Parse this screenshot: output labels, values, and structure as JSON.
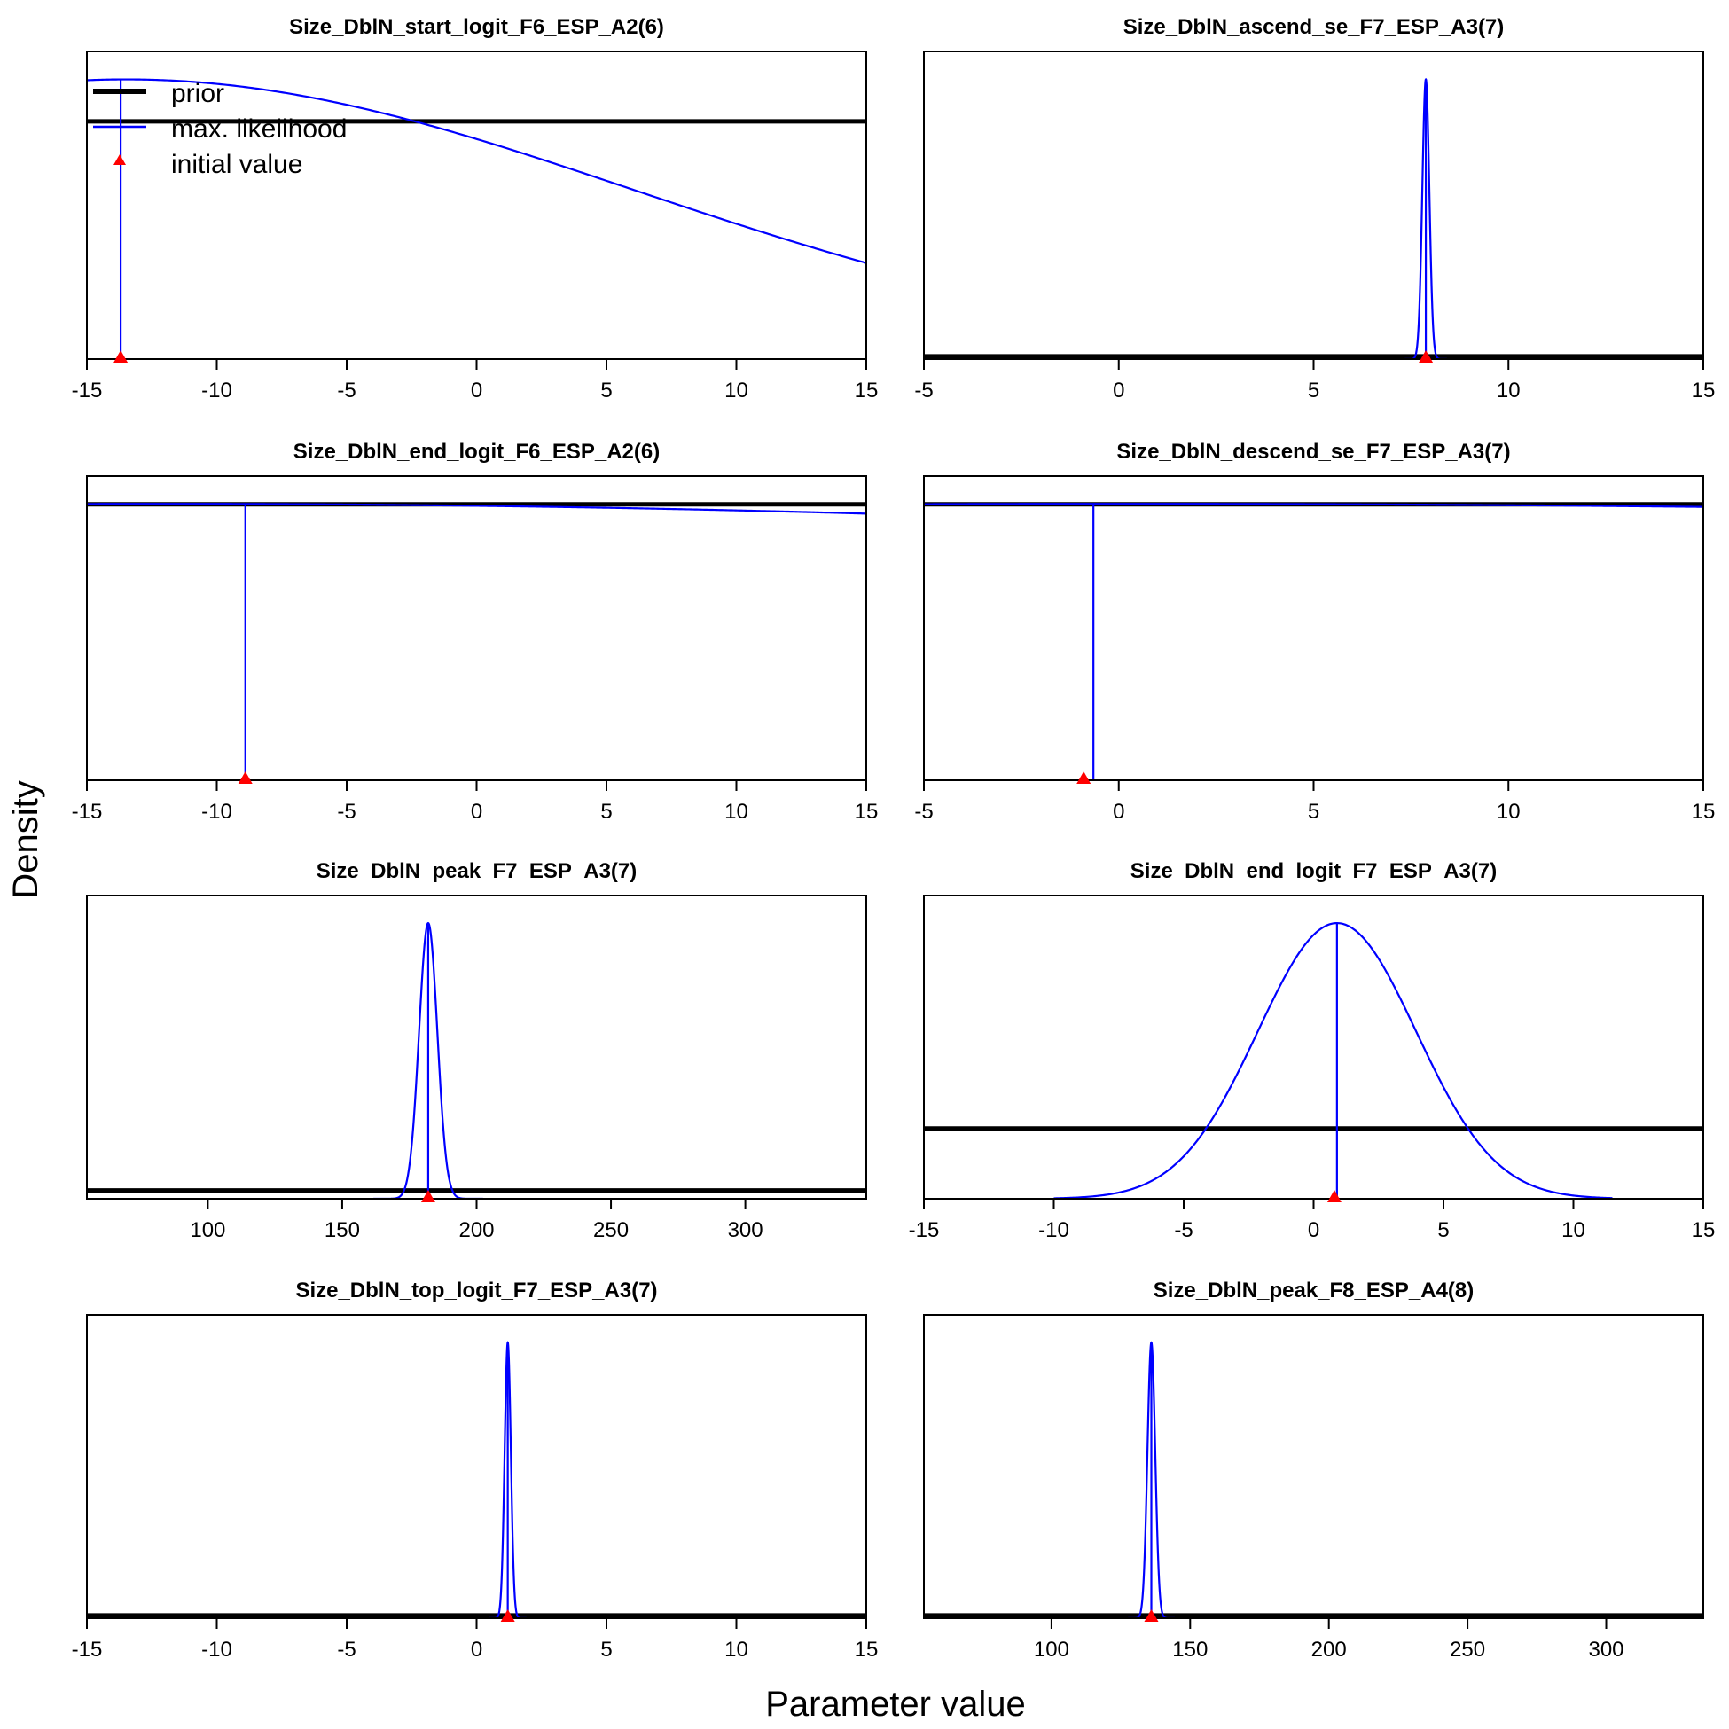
{
  "figure": {
    "ylabel": "Density",
    "xlabel": "Parameter value"
  },
  "legend": {
    "entries": [
      {
        "label": "prior",
        "color": "#000000"
      },
      {
        "label": "max. likelihood",
        "color": "#0000FF"
      },
      {
        "label": "initial value",
        "color": "#FF0000"
      }
    ]
  },
  "colors": {
    "prior": "#000000",
    "likelihood": "#0000FF",
    "initial": "#FF0000",
    "frame": "#000000"
  },
  "chart_data": [
    {
      "type": "line",
      "title": "Size_DblN_start_logit_F6_ESP_A2(6)",
      "xlim": [
        -15,
        15
      ],
      "ylim": [
        0,
        1.1
      ],
      "xticks": [
        -15,
        -10,
        -5,
        0,
        5,
        10,
        15
      ],
      "prior": {
        "kind": "flat",
        "y": 0.85
      },
      "likelihood": {
        "kind": "normal",
        "mean": -13.5,
        "sd": 19.5,
        "peak": 1.0
      },
      "mle": -13.7,
      "initial": -13.7
    },
    {
      "type": "line",
      "title": "Size_DblN_ascend_se_F7_ESP_A3(7)",
      "xlim": [
        -5,
        15
      ],
      "ylim": [
        0,
        1.1
      ],
      "xticks": [
        -5,
        0,
        5,
        10,
        15
      ],
      "prior": {
        "kind": "flat",
        "y": 0.01
      },
      "likelihood": {
        "kind": "normal",
        "mean": 7.88,
        "sd": 0.09,
        "peak": 1.0
      },
      "mle": 7.88,
      "initial": 7.88
    },
    {
      "type": "line",
      "title": "Size_DblN_end_logit_F6_ESP_A2(6)",
      "xlim": [
        -15,
        15
      ],
      "ylim": [
        0,
        1.1
      ],
      "xticks": [
        -15,
        -10,
        -5,
        0,
        5,
        10,
        15
      ],
      "prior": {
        "kind": "flat",
        "y": 0.998
      },
      "likelihood": {
        "kind": "normal",
        "mean": -12,
        "sd": 100,
        "peak": 1.0
      },
      "mle": -8.9,
      "initial": -8.9
    },
    {
      "type": "line",
      "title": "Size_DblN_descend_se_F7_ESP_A3(7)",
      "xlim": [
        -5,
        15
      ],
      "ylim": [
        0,
        1.1
      ],
      "xticks": [
        -5,
        0,
        5,
        10,
        15
      ],
      "prior": {
        "kind": "flat",
        "y": 0.998
      },
      "likelihood": {
        "kind": "normal",
        "mean": 0,
        "sd": 100,
        "peak": 1.0
      },
      "mle": -0.65,
      "initial": -0.9
    },
    {
      "type": "line",
      "title": "Size_DblN_peak_F7_ESP_A3(7)",
      "xlim": [
        55,
        345
      ],
      "ylim": [
        0,
        1.1
      ],
      "xticks": [
        100,
        150,
        200,
        250,
        300
      ],
      "prior": {
        "kind": "flat",
        "y": 0.03
      },
      "likelihood": {
        "kind": "normal",
        "mean": 182,
        "sd": 3.4,
        "peak": 1.0
      },
      "mle": 182,
      "initial": 182
    },
    {
      "type": "line",
      "title": "Size_DblN_end_logit_F7_ESP_A3(7)",
      "xlim": [
        -15,
        15
      ],
      "ylim": [
        0,
        1.1
      ],
      "xticks": [
        -15,
        -10,
        -5,
        0,
        5,
        10,
        15
      ],
      "prior": {
        "kind": "flat",
        "y": 0.255
      },
      "likelihood": {
        "kind": "normal",
        "mean": 0.9,
        "sd": 3.05,
        "peak": 1.0,
        "range": [
          -10,
          11.5
        ]
      },
      "mle": 0.9,
      "initial": 0.8
    },
    {
      "type": "line",
      "title": "Size_DblN_top_logit_F7_ESP_A3(7)",
      "xlim": [
        -15,
        15
      ],
      "ylim": [
        0,
        1.1
      ],
      "xticks": [
        -15,
        -10,
        -5,
        0,
        5,
        10,
        15
      ],
      "prior": {
        "kind": "flat",
        "y": 0.01
      },
      "likelihood": {
        "kind": "normal",
        "mean": 1.2,
        "sd": 0.12,
        "peak": 1.0
      },
      "mle": 1.2,
      "initial": 1.2
    },
    {
      "type": "line",
      "title": "Size_DblN_peak_F8_ESP_A4(8)",
      "xlim": [
        54,
        335
      ],
      "ylim": [
        0,
        1.1
      ],
      "xticks": [
        100,
        150,
        200,
        250,
        300
      ],
      "prior": {
        "kind": "flat",
        "y": 0.01
      },
      "likelihood": {
        "kind": "normal",
        "mean": 136,
        "sd": 1.4,
        "peak": 1.0
      },
      "mle": 136,
      "initial": 136
    }
  ]
}
